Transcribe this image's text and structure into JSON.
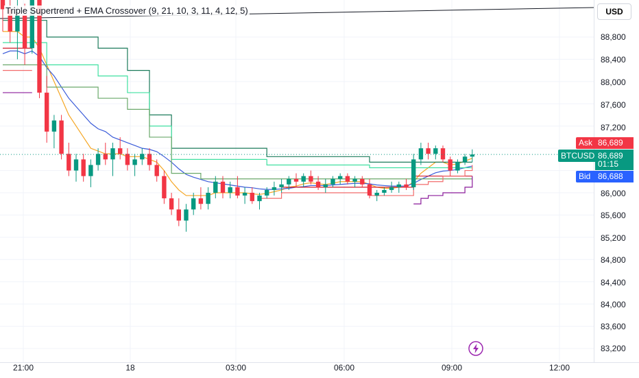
{
  "indicator": {
    "title": "Triple Supertrend + EMA Crossover (9, 21, 10, 3, 11, 4, 12, 5)"
  },
  "toolbar": {
    "currency": "USD"
  },
  "price_scale": {
    "ticks": [
      "88,800",
      "88,400",
      "88,000",
      "87,600",
      "87,200",
      "86,000",
      "85,600",
      "85,200",
      "84,800",
      "84,400",
      "84,000",
      "83,600",
      "83,200"
    ]
  },
  "time_axis": {
    "ticks": [
      "21:00",
      "18",
      "03:00",
      "06:00",
      "09:00",
      "12:00"
    ]
  },
  "quote": {
    "symbol": "BTCUSD",
    "ask_label": "Ask",
    "ask": "86,689",
    "last": "86,689",
    "countdown": "01:15",
    "bid_label": "Bid",
    "bid": "86,688"
  },
  "icons": {
    "lightning": "lightning-icon"
  },
  "colors": {
    "up": "#089981",
    "down": "#f23645",
    "ema_fast": "#f5a623",
    "ema_slow": "#3a5bd9",
    "st1": "#1b7a5a",
    "st2": "#3fe0a0",
    "st3": "#6aa86a",
    "st_red": "#d11a2a",
    "st_light_red": "#f26b6b",
    "st_purple": "#8a1a9a",
    "ask": "#f23645",
    "bid": "#2962ff",
    "last": "#089981"
  },
  "chart_data": {
    "type": "candlestick",
    "symbol": "BTCUSD",
    "y_range": [
      83000,
      89200
    ],
    "x_start_label": "21:00",
    "bar_minutes": 15,
    "candles": [
      [
        89600,
        89900,
        88900,
        89300
      ],
      [
        89300,
        89600,
        88700,
        88900
      ],
      [
        88900,
        89500,
        88400,
        89200
      ],
      [
        89200,
        89400,
        88300,
        88600
      ],
      [
        88600,
        89700,
        88500,
        89500
      ],
      [
        89500,
        89500,
        87700,
        87800
      ],
      [
        87800,
        88100,
        86900,
        87100
      ],
      [
        87100,
        87400,
        86800,
        87300
      ],
      [
        87300,
        87400,
        86600,
        86700
      ],
      [
        86700,
        86900,
        86300,
        86400
      ],
      [
        86400,
        86700,
        86200,
        86600
      ],
      [
        86600,
        86700,
        86200,
        86300
      ],
      [
        86300,
        86600,
        86100,
        86500
      ],
      [
        86500,
        86800,
        86400,
        86700
      ],
      [
        86700,
        86900,
        86500,
        86600
      ],
      [
        86600,
        86900,
        86300,
        86800
      ],
      [
        86800,
        87000,
        86600,
        86700
      ],
      [
        86700,
        86800,
        86400,
        86500
      ],
      [
        86500,
        86700,
        86300,
        86600
      ],
      [
        86600,
        86800,
        86500,
        86700
      ],
      [
        86700,
        86800,
        86400,
        86500
      ],
      [
        86500,
        86600,
        86200,
        86300
      ],
      [
        86300,
        86400,
        85800,
        85900
      ],
      [
        85900,
        86000,
        85600,
        85700
      ],
      [
        85700,
        85900,
        85400,
        85500
      ],
      [
        85500,
        85800,
        85300,
        85700
      ],
      [
        85700,
        86000,
        85600,
        85900
      ],
      [
        85900,
        86100,
        85700,
        85800
      ],
      [
        85800,
        86100,
        85700,
        86000
      ],
      [
        86000,
        86300,
        85900,
        86200
      ],
      [
        86200,
        86300,
        85900,
        86000
      ],
      [
        86000,
        86200,
        85900,
        86100
      ],
      [
        86100,
        86300,
        85900,
        85950
      ],
      [
        85950,
        86100,
        85800,
        86000
      ],
      [
        86000,
        86100,
        85800,
        85850
      ],
      [
        85850,
        86000,
        85700,
        85950
      ],
      [
        85950,
        86100,
        85900,
        86050
      ],
      [
        86050,
        86200,
        85950,
        86100
      ],
      [
        86100,
        86250,
        86000,
        86150
      ],
      [
        86150,
        86300,
        86050,
        86250
      ],
      [
        86250,
        86350,
        86100,
        86200
      ],
      [
        86200,
        86350,
        86100,
        86300
      ],
      [
        86300,
        86400,
        86150,
        86200
      ],
      [
        86200,
        86300,
        86050,
        86100
      ],
      [
        86100,
        86250,
        86000,
        86150
      ],
      [
        86150,
        86300,
        86100,
        86250
      ],
      [
        86250,
        86350,
        86150,
        86300
      ],
      [
        86300,
        86350,
        86150,
        86200
      ],
      [
        86200,
        86300,
        86100,
        86250
      ],
      [
        86250,
        86300,
        86100,
        86150
      ],
      [
        86150,
        86250,
        85900,
        85950
      ],
      [
        85950,
        86050,
        85850,
        86000
      ],
      [
        86000,
        86100,
        85950,
        86050
      ],
      [
        86050,
        86200,
        86000,
        86100
      ],
      [
        86100,
        86200,
        86000,
        86150
      ],
      [
        86150,
        86250,
        86050,
        86100
      ],
      [
        86100,
        86700,
        86050,
        86600
      ],
      [
        86600,
        86900,
        86500,
        86800
      ],
      [
        86800,
        86900,
        86600,
        86700
      ],
      [
        86700,
        86850,
        86600,
        86800
      ],
      [
        86800,
        86850,
        86550,
        86600
      ],
      [
        86600,
        86650,
        86300,
        86400
      ],
      [
        86400,
        86600,
        86350,
        86550
      ],
      [
        86550,
        86700,
        86500,
        86650
      ],
      [
        86650,
        86780,
        86550,
        86689
      ]
    ],
    "series": [
      {
        "name": "EMA 9",
        "color": "#f5a623",
        "values": [
          88900,
          88900,
          88900,
          88800,
          88800,
          88600,
          88300,
          88000,
          87700,
          87400,
          87200,
          87000,
          86800,
          86750,
          86700,
          86700,
          86700,
          86650,
          86650,
          86650,
          86600,
          86550,
          86400,
          86200,
          86050,
          85950,
          85950,
          85950,
          85950,
          86000,
          86000,
          86000,
          86000,
          86000,
          85980,
          85970,
          85990,
          86020,
          86050,
          86100,
          86120,
          86160,
          86180,
          86160,
          86150,
          86170,
          86200,
          86200,
          86200,
          86200,
          86150,
          86100,
          86080,
          86080,
          86100,
          86100,
          86200,
          86350,
          86450,
          86550,
          86550,
          86500,
          86520,
          86570,
          86620
        ]
      },
      {
        "name": "EMA 21",
        "color": "#3a5bd9",
        "values": [
          88500,
          88550,
          88550,
          88500,
          88550,
          88450,
          88250,
          88100,
          87900,
          87700,
          87550,
          87400,
          87250,
          87150,
          87100,
          87000,
          86950,
          86900,
          86850,
          86800,
          86780,
          86740,
          86650,
          86550,
          86430,
          86330,
          86280,
          86240,
          86200,
          86180,
          86160,
          86140,
          86120,
          86100,
          86090,
          86070,
          86060,
          86060,
          86070,
          86080,
          86100,
          86110,
          86130,
          86130,
          86130,
          86140,
          86150,
          86160,
          86170,
          86170,
          86160,
          86140,
          86130,
          86120,
          86120,
          86120,
          86170,
          86240,
          86300,
          86360,
          86390,
          86400,
          86420,
          86450,
          86480
        ]
      },
      {
        "name": "Supertrend 1",
        "color": "#1b7a5a",
        "values": [
          89100,
          89100,
          89100,
          89100,
          89100,
          89100,
          88800,
          88800,
          88800,
          88800,
          88800,
          88800,
          88800,
          88600,
          88600,
          88600,
          88600,
          88200,
          88200,
          88200,
          87400,
          87400,
          87400,
          86800,
          86800,
          86800,
          86800,
          86800,
          86800,
          86800,
          86800,
          86800,
          86800,
          86800,
          86800,
          86800,
          86650,
          86650,
          86650,
          86650,
          86650,
          86650,
          86650,
          86650,
          86650,
          86650,
          86650,
          86650,
          86650,
          86650,
          86550,
          86550,
          86550,
          86550,
          86550,
          86550,
          86550,
          86550,
          86550,
          86550,
          86550,
          86550,
          86550,
          86550,
          86550
        ]
      },
      {
        "name": "Supertrend 2",
        "color": "#3fe0a0",
        "values": [
          88700,
          88700,
          88700,
          88700,
          88700,
          88700,
          88300,
          88300,
          88300,
          88300,
          88300,
          88300,
          88300,
          88100,
          88100,
          88100,
          88100,
          87800,
          87800,
          87800,
          87200,
          87200,
          87200,
          86600,
          86600,
          86600,
          86600,
          86600,
          86600,
          86600,
          86600,
          86600,
          86600,
          86600,
          86600,
          86600,
          86500,
          86500,
          86500,
          86500,
          86500,
          86500,
          86500,
          86500,
          86500,
          86500,
          86500,
          86500,
          86500,
          86500,
          86450,
          86450,
          86450,
          86450,
          86450,
          86450,
          86450,
          86450,
          86450,
          86450,
          86450,
          86450,
          86450,
          86450,
          86450
        ]
      },
      {
        "name": "Supertrend 3",
        "color": "#6aa86a",
        "values": [
          88300,
          88300,
          88300,
          88300,
          88300,
          88300,
          87900,
          87900,
          87900,
          87900,
          87900,
          87900,
          87900,
          87700,
          87700,
          87700,
          87700,
          87500,
          87500,
          87500,
          87000,
          87000,
          87000,
          86350,
          86350,
          86350,
          86350,
          86250,
          86250,
          86250,
          86250,
          86250,
          86250,
          86250,
          86250,
          86250,
          86250,
          86250,
          86250,
          86250,
          86250,
          86250,
          86250,
          86250,
          86250,
          86250,
          86250,
          86250,
          86250,
          86250,
          86250,
          86250,
          86250,
          86250,
          86250,
          86250,
          86250,
          86250,
          86250,
          86250,
          86250,
          86250,
          86250,
          86250,
          86250
        ]
      },
      {
        "name": "Supertrend 4",
        "color": "#d11a2a",
        "values": [
          88600,
          88600,
          88600,
          88600,
          88600,
          null,
          null,
          null,
          null,
          null,
          null,
          null,
          null,
          null,
          null,
          null,
          null,
          null,
          null,
          null,
          null,
          null,
          null,
          null,
          null,
          null,
          null,
          null,
          null,
          null,
          null,
          null,
          null,
          null,
          null,
          null,
          null,
          null,
          86100,
          86100,
          86100,
          86100,
          86100,
          86100,
          86100,
          86100,
          86100,
          86100,
          86100,
          86100,
          86100,
          86100,
          86100,
          86100,
          86100,
          86100,
          86300,
          86300,
          86300,
          86300,
          86300,
          86300,
          86300,
          86300,
          86300
        ]
      },
      {
        "name": "Supertrend 5",
        "color": "#f26b6b",
        "values": [
          88200,
          88200,
          88200,
          88200,
          88200,
          null,
          null,
          null,
          null,
          null,
          null,
          null,
          null,
          null,
          null,
          null,
          null,
          null,
          null,
          null,
          null,
          null,
          null,
          null,
          null,
          null,
          null,
          null,
          null,
          null,
          null,
          null,
          null,
          null,
          null,
          85900,
          85900,
          85900,
          86000,
          86000,
          86000,
          86000,
          86000,
          86000,
          86000,
          86000,
          86000,
          86000,
          86000,
          86000,
          85950,
          85950,
          85950,
          85950,
          85950,
          85950,
          86150,
          86150,
          86200,
          86200,
          86300,
          86300,
          86300,
          86400,
          86500
        ]
      },
      {
        "name": "Supertrend 6",
        "color": "#8a1a9a",
        "values": [
          87800,
          87800,
          87800,
          87800,
          87800,
          null,
          null,
          null,
          null,
          null,
          null,
          null,
          null,
          null,
          null,
          null,
          null,
          null,
          null,
          null,
          null,
          null,
          null,
          null,
          null,
          null,
          null,
          null,
          null,
          null,
          null,
          null,
          null,
          null,
          null,
          null,
          null,
          null,
          null,
          null,
          null,
          null,
          null,
          null,
          null,
          null,
          null,
          null,
          null,
          null,
          null,
          null,
          null,
          null,
          null,
          null,
          85800,
          85900,
          85950,
          85950,
          86000,
          86000,
          86000,
          86100,
          86300
        ]
      }
    ],
    "last_price": 86689,
    "grid": true
  }
}
